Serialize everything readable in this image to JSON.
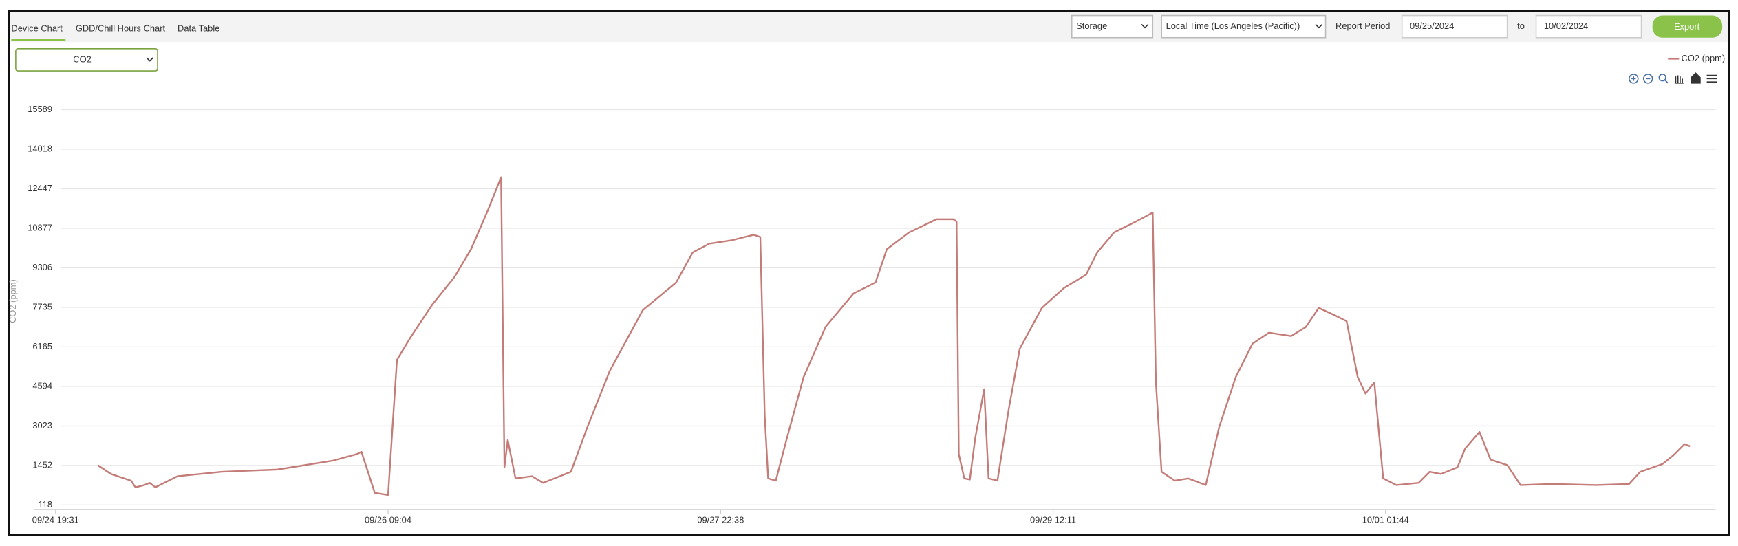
{
  "tabs": [
    "Device Chart",
    "GDD/Chill Hours Chart",
    "Data Table"
  ],
  "controls": {
    "location": "Storage",
    "timezone": "Local Time (Los Angeles (Pacific))",
    "period_label": "Report Period",
    "start": "09/25/2024",
    "to": "to",
    "end": "10/02/2024",
    "export": "Export",
    "sensor": "CO2"
  },
  "chart_data": {
    "type": "line",
    "y_label": "CO2 (ppm)",
    "series": [
      {
        "name": "CO2 (ppm)",
        "color": "#c47c78",
        "x": [
          "09/25 00:16",
          "09/25 01:47",
          "09/25 04:02",
          "09/25 04:32",
          "09/25 05:32",
          "09/25 06:09",
          "09/25 06:47",
          "09/25 09:17",
          "09/25 14:18",
          "09/25 20:33",
          "09/26 02:49",
          "09/26 05:34",
          "09/26 06:04",
          "09/26 07:34",
          "09/26 09:04",
          "09/26 10:04",
          "09/26 11:34",
          "09/26 14:04",
          "09/26 16:35",
          "09/26 18:27",
          "09/26 20:20",
          "09/26 21:50",
          "09/26 22:13",
          "09/26 22:35",
          "09/26 23:28",
          "09/27 01:20",
          "09/27 02:35",
          "09/27 03:51",
          "09/27 05:43",
          "09/27 07:36",
          "09/27 10:06",
          "09/27 13:51",
          "09/27 17:37",
          "09/27 19:29",
          "09/27 21:22",
          "09/27 23:52",
          "09/28 02:22",
          "09/28 03:07",
          "09/28 03:37",
          "09/28 04:00",
          "09/28 04:52",
          "09/28 06:08",
          "09/28 08:00",
          "09/28 10:30",
          "09/28 13:38",
          "09/28 16:08",
          "09/28 17:24",
          "09/28 19:54",
          "09/28 23:01",
          "09/29 00:54",
          "09/29 01:17",
          "09/29 01:32",
          "09/29 02:09",
          "09/29 02:47",
          "09/29 03:24",
          "09/29 04:24",
          "09/29 04:54",
          "09/29 05:54",
          "09/29 07:10",
          "09/29 08:25",
          "09/29 10:55",
          "09/29 13:25",
          "09/29 15:55",
          "09/29 17:10",
          "09/29 19:03",
          "09/29 21:33",
          "09/29 23:26",
          "09/29 23:48",
          "09/30 00:26",
          "09/30 01:56",
          "09/30 03:26",
          "09/30 05:26",
          "09/30 06:57",
          "09/30 08:49",
          "09/30 10:42",
          "09/30 12:34",
          "09/30 15:05",
          "09/30 16:42",
          "09/30 18:12",
          "09/30 20:05",
          "09/30 21:20",
          "09/30 22:35",
          "09/30 23:28",
          "10/01 00:28",
          "10/01 01:28",
          "10/01 02:58",
          "10/01 05:28",
          "10/01 06:43",
          "10/01 07:59",
          "10/01 09:51",
          "10/01 10:44",
          "10/01 12:21",
          "10/01 13:36",
          "10/01 15:29",
          "10/01 16:59",
          "10/01 20:30",
          "10/02 01:30",
          "10/02 05:15",
          "10/02 06:30",
          "10/02 09:01",
          "10/02 10:16",
          "10/02 11:31",
          "10/02 12:08"
        ],
        "values": [
          1465,
          1113,
          849,
          585,
          673,
          761,
          585,
          1025,
          1201,
          1289,
          1641,
          1905,
          1993,
          365,
          277,
          5645,
          6525,
          7845,
          8945,
          10045,
          11585,
          12905,
          1377,
          2465,
          937,
          1025,
          761,
          937,
          1201,
          2993,
          5205,
          7625,
          8725,
          9913,
          10265,
          10397,
          10617,
          10529,
          3433,
          937,
          849,
          2553,
          4969,
          6965,
          8285,
          8725,
          10045,
          10705,
          11233,
          11233,
          11145,
          1905,
          937,
          893,
          2553,
          4485,
          937,
          849,
          3665,
          6085,
          7713,
          8505,
          9033,
          9913,
          10705,
          11145,
          11497,
          4765,
          1201,
          849,
          937,
          673,
          2993,
          4969,
          6289,
          6729,
          6597,
          6949,
          7713,
          7405,
          7185,
          4969,
          4309,
          4749,
          937,
          673,
          761,
          1201,
          1113,
          1377,
          2125,
          2785,
          1685,
          1465,
          673,
          717,
          673,
          717,
          1201,
          1509,
          1861,
          2301,
          2213
        ]
      }
    ],
    "xlim": [
      "09/24 17:01",
      "10/02 15:01"
    ],
    "xticks": [
      "09/24 19:31",
      "09/26 09:04",
      "09/27 22:38",
      "09/29 12:11",
      "10/01 01:44"
    ],
    "ylim": [
      -118,
      15589
    ],
    "yticks": [
      -118,
      1452,
      3023,
      4594,
      6165,
      7735,
      9306,
      10877,
      12447,
      14018,
      15589
    ],
    "grid": true,
    "legend": "top-right"
  }
}
